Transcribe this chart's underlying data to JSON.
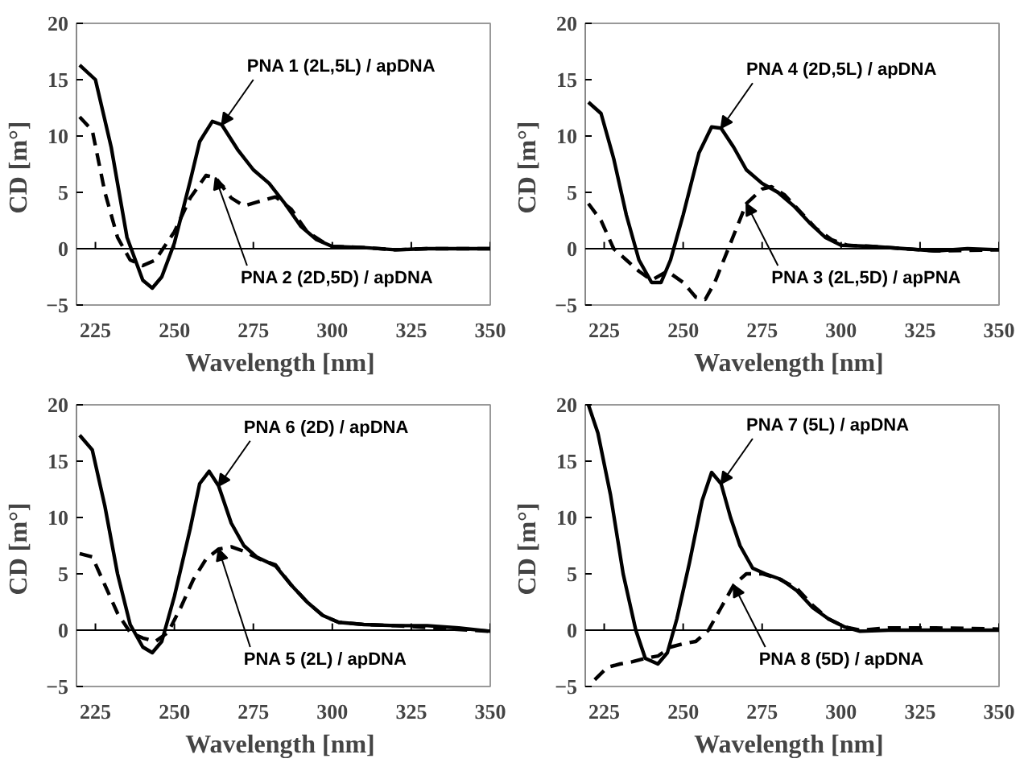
{
  "chart_data": [
    {
      "type": "line",
      "xlabel": "Wavelength  [nm]",
      "ylabel": "CD  [m°]",
      "xlim": [
        219,
        350
      ],
      "ylim": [
        -5,
        20
      ],
      "xticks": [
        225,
        250,
        275,
        300,
        325,
        350
      ],
      "yticks": [
        -5,
        0,
        5,
        10,
        15,
        20
      ],
      "grid": false,
      "ref_lines": [
        {
          "axis": "y",
          "value": 0,
          "color": "#000000"
        }
      ],
      "annotations": [
        {
          "text": "PNA 1 (2L,5L) / apDNA",
          "x": 265,
          "y": 11
        },
        {
          "text": "PNA 2 (2D,5D) / apDNA",
          "x": 263,
          "y": 6.3
        }
      ],
      "series": [
        {
          "color": "#000000",
          "line_style": "solid",
          "x": [
            220,
            225,
            230,
            235,
            240,
            243,
            246,
            250,
            255,
            258,
            262,
            265,
            270,
            275,
            280,
            285,
            290,
            295,
            300,
            310,
            320,
            330,
            340,
            350
          ],
          "values": [
            16.3,
            15,
            9,
            1,
            -2.8,
            -3.5,
            -2.5,
            0.5,
            6,
            9.5,
            11.3,
            11,
            8.8,
            7,
            5.8,
            4,
            2,
            0.8,
            0.2,
            0.1,
            -0.1,
            0,
            0,
            0
          ]
        },
        {
          "color": "#000000",
          "line_style": "dashed",
          "x": [
            220,
            224,
            228,
            232,
            236,
            240,
            244,
            250,
            255,
            260,
            263,
            268,
            272,
            277,
            282,
            287,
            292,
            297,
            300,
            310,
            320,
            330,
            350
          ],
          "values": [
            11.7,
            10.5,
            5,
            1,
            -1,
            -1.5,
            -1,
            1.5,
            4.5,
            6.5,
            6.3,
            4.5,
            3.8,
            4.2,
            4.6,
            3.5,
            1.5,
            0.6,
            0.2,
            0.1,
            -0.1,
            0,
            0
          ]
        }
      ]
    },
    {
      "type": "line",
      "xlabel": "Wavelength  [nm]",
      "ylabel": "CD  [m°]",
      "xlim": [
        219,
        350
      ],
      "ylim": [
        -5,
        20
      ],
      "xticks": [
        225,
        250,
        275,
        300,
        325,
        350
      ],
      "yticks": [
        -5,
        0,
        5,
        10,
        15,
        20
      ],
      "grid": false,
      "ref_lines": [
        {
          "axis": "y",
          "value": 0,
          "color": "#000000"
        }
      ],
      "annotations": [
        {
          "text": "PNA 4 (2D,5L) / apDNA",
          "x": 262,
          "y": 10.7
        },
        {
          "text": "PNA 3 (2L,5D) / apPNA",
          "x": 270,
          "y": 4
        }
      ],
      "series": [
        {
          "color": "#000000",
          "line_style": "solid",
          "x": [
            220,
            224,
            228,
            232,
            236,
            240,
            243,
            246,
            250,
            255,
            259,
            262,
            266,
            270,
            275,
            280,
            285,
            290,
            295,
            300,
            310,
            320,
            330,
            340,
            350
          ],
          "values": [
            13,
            12,
            8,
            3,
            -1,
            -3,
            -3,
            -1,
            3,
            8.5,
            10.8,
            10.7,
            9,
            7,
            5.8,
            5,
            3.8,
            2.3,
            1,
            0.3,
            0.2,
            0,
            -0.2,
            0,
            -0.1
          ]
        },
        {
          "color": "#000000",
          "line_style": "dashed",
          "x": [
            220,
            224,
            228,
            232,
            236,
            240,
            245,
            250,
            254,
            257,
            260,
            265,
            270,
            275,
            278,
            282,
            287,
            292,
            297,
            302,
            310,
            320,
            330,
            350
          ],
          "values": [
            4,
            2.5,
            0,
            -1,
            -2,
            -2.8,
            -2,
            -3,
            -4.3,
            -4.5,
            -3,
            0.5,
            4,
            5.3,
            5.5,
            4.8,
            3.3,
            1.8,
            0.8,
            0.3,
            0.2,
            0,
            -0.2,
            -0.1
          ]
        }
      ]
    },
    {
      "type": "line",
      "xlabel": "Wavelength  [nm]",
      "ylabel": "CD  [m°]",
      "xlim": [
        219,
        350
      ],
      "ylim": [
        -5,
        20
      ],
      "xticks": [
        225,
        250,
        275,
        300,
        325,
        350
      ],
      "yticks": [
        -5,
        0,
        5,
        10,
        15,
        20
      ],
      "grid": false,
      "ref_lines": [
        {
          "axis": "y",
          "value": 0,
          "color": "#000000"
        }
      ],
      "annotations": [
        {
          "text": "PNA 6 (2D) / apDNA",
          "x": 264,
          "y": 12.8
        },
        {
          "text": "PNA 5 (2L) / apDNA",
          "x": 264,
          "y": 7.2
        }
      ],
      "series": [
        {
          "color": "#000000",
          "line_style": "solid",
          "x": [
            220,
            224,
            228,
            232,
            236,
            240,
            243,
            246,
            250,
            255,
            258,
            261,
            264,
            268,
            272,
            276,
            282,
            287,
            292,
            297,
            302,
            310,
            320,
            330,
            340,
            350
          ],
          "values": [
            17.3,
            16,
            11,
            5,
            0.5,
            -1.5,
            -2,
            -1,
            3,
            9,
            13,
            14.1,
            12.8,
            9.5,
            7.5,
            6.5,
            5.7,
            4,
            2.5,
            1.3,
            0.7,
            0.5,
            0.4,
            0.4,
            0.2,
            -0.1
          ]
        },
        {
          "color": "#000000",
          "line_style": "dashed",
          "x": [
            220,
            224,
            228,
            232,
            236,
            240,
            244,
            248,
            252,
            256,
            260,
            264,
            268,
            272,
            277,
            282,
            287,
            292,
            297,
            302,
            310,
            320,
            350
          ],
          "values": [
            6.8,
            6.5,
            4,
            1.5,
            -0.2,
            -0.7,
            -1,
            -0.2,
            2,
            4.5,
            6.3,
            7.2,
            7.4,
            7,
            6.3,
            5.8,
            4,
            2.5,
            1.3,
            0.7,
            0.5,
            0.4,
            -0.1
          ]
        }
      ]
    },
    {
      "type": "line",
      "xlabel": "Wavelength  [nm]",
      "ylabel": "CD  [m°]",
      "xlim": [
        219,
        350
      ],
      "ylim": [
        -5,
        20
      ],
      "xticks": [
        225,
        250,
        275,
        300,
        325,
        350
      ],
      "yticks": [
        -5,
        0,
        5,
        10,
        15,
        20
      ],
      "grid": false,
      "ref_lines": [
        {
          "axis": "y",
          "value": 0,
          "color": "#000000"
        }
      ],
      "annotations": [
        {
          "text": "PNA 7 (5L) / apDNA",
          "x": 262,
          "y": 13
        },
        {
          "text": "PNA 8 (5D) / apDNA",
          "x": 266,
          "y": 4
        }
      ],
      "series": [
        {
          "color": "#000000",
          "line_style": "solid",
          "x": [
            220,
            223,
            227,
            231,
            235,
            238,
            242,
            245,
            248,
            252,
            256,
            259,
            262,
            265,
            268,
            272,
            276,
            281,
            286,
            291,
            296,
            301,
            306,
            315,
            330,
            350
          ],
          "values": [
            20,
            17.5,
            12,
            5,
            0,
            -2.5,
            -3,
            -2,
            1,
            6,
            11.5,
            14,
            13,
            10,
            7.5,
            5.5,
            5,
            4.5,
            3.5,
            2,
            1,
            0.3,
            -0.1,
            0,
            0,
            0
          ]
        },
        {
          "color": "#000000",
          "line_style": "dashed",
          "x": [
            222,
            226,
            230,
            234,
            238,
            242,
            246,
            250,
            254,
            258,
            262,
            266,
            270,
            275,
            280,
            286,
            291,
            296,
            301,
            306,
            315,
            330,
            350
          ],
          "values": [
            -4.4,
            -3.3,
            -3,
            -2.8,
            -2.5,
            -2.3,
            -1.5,
            -1.2,
            -1,
            0,
            2,
            4,
            5,
            5,
            4.6,
            3.7,
            2.2,
            1,
            0.3,
            0,
            0.2,
            0.2,
            0.1
          ]
        }
      ]
    }
  ]
}
